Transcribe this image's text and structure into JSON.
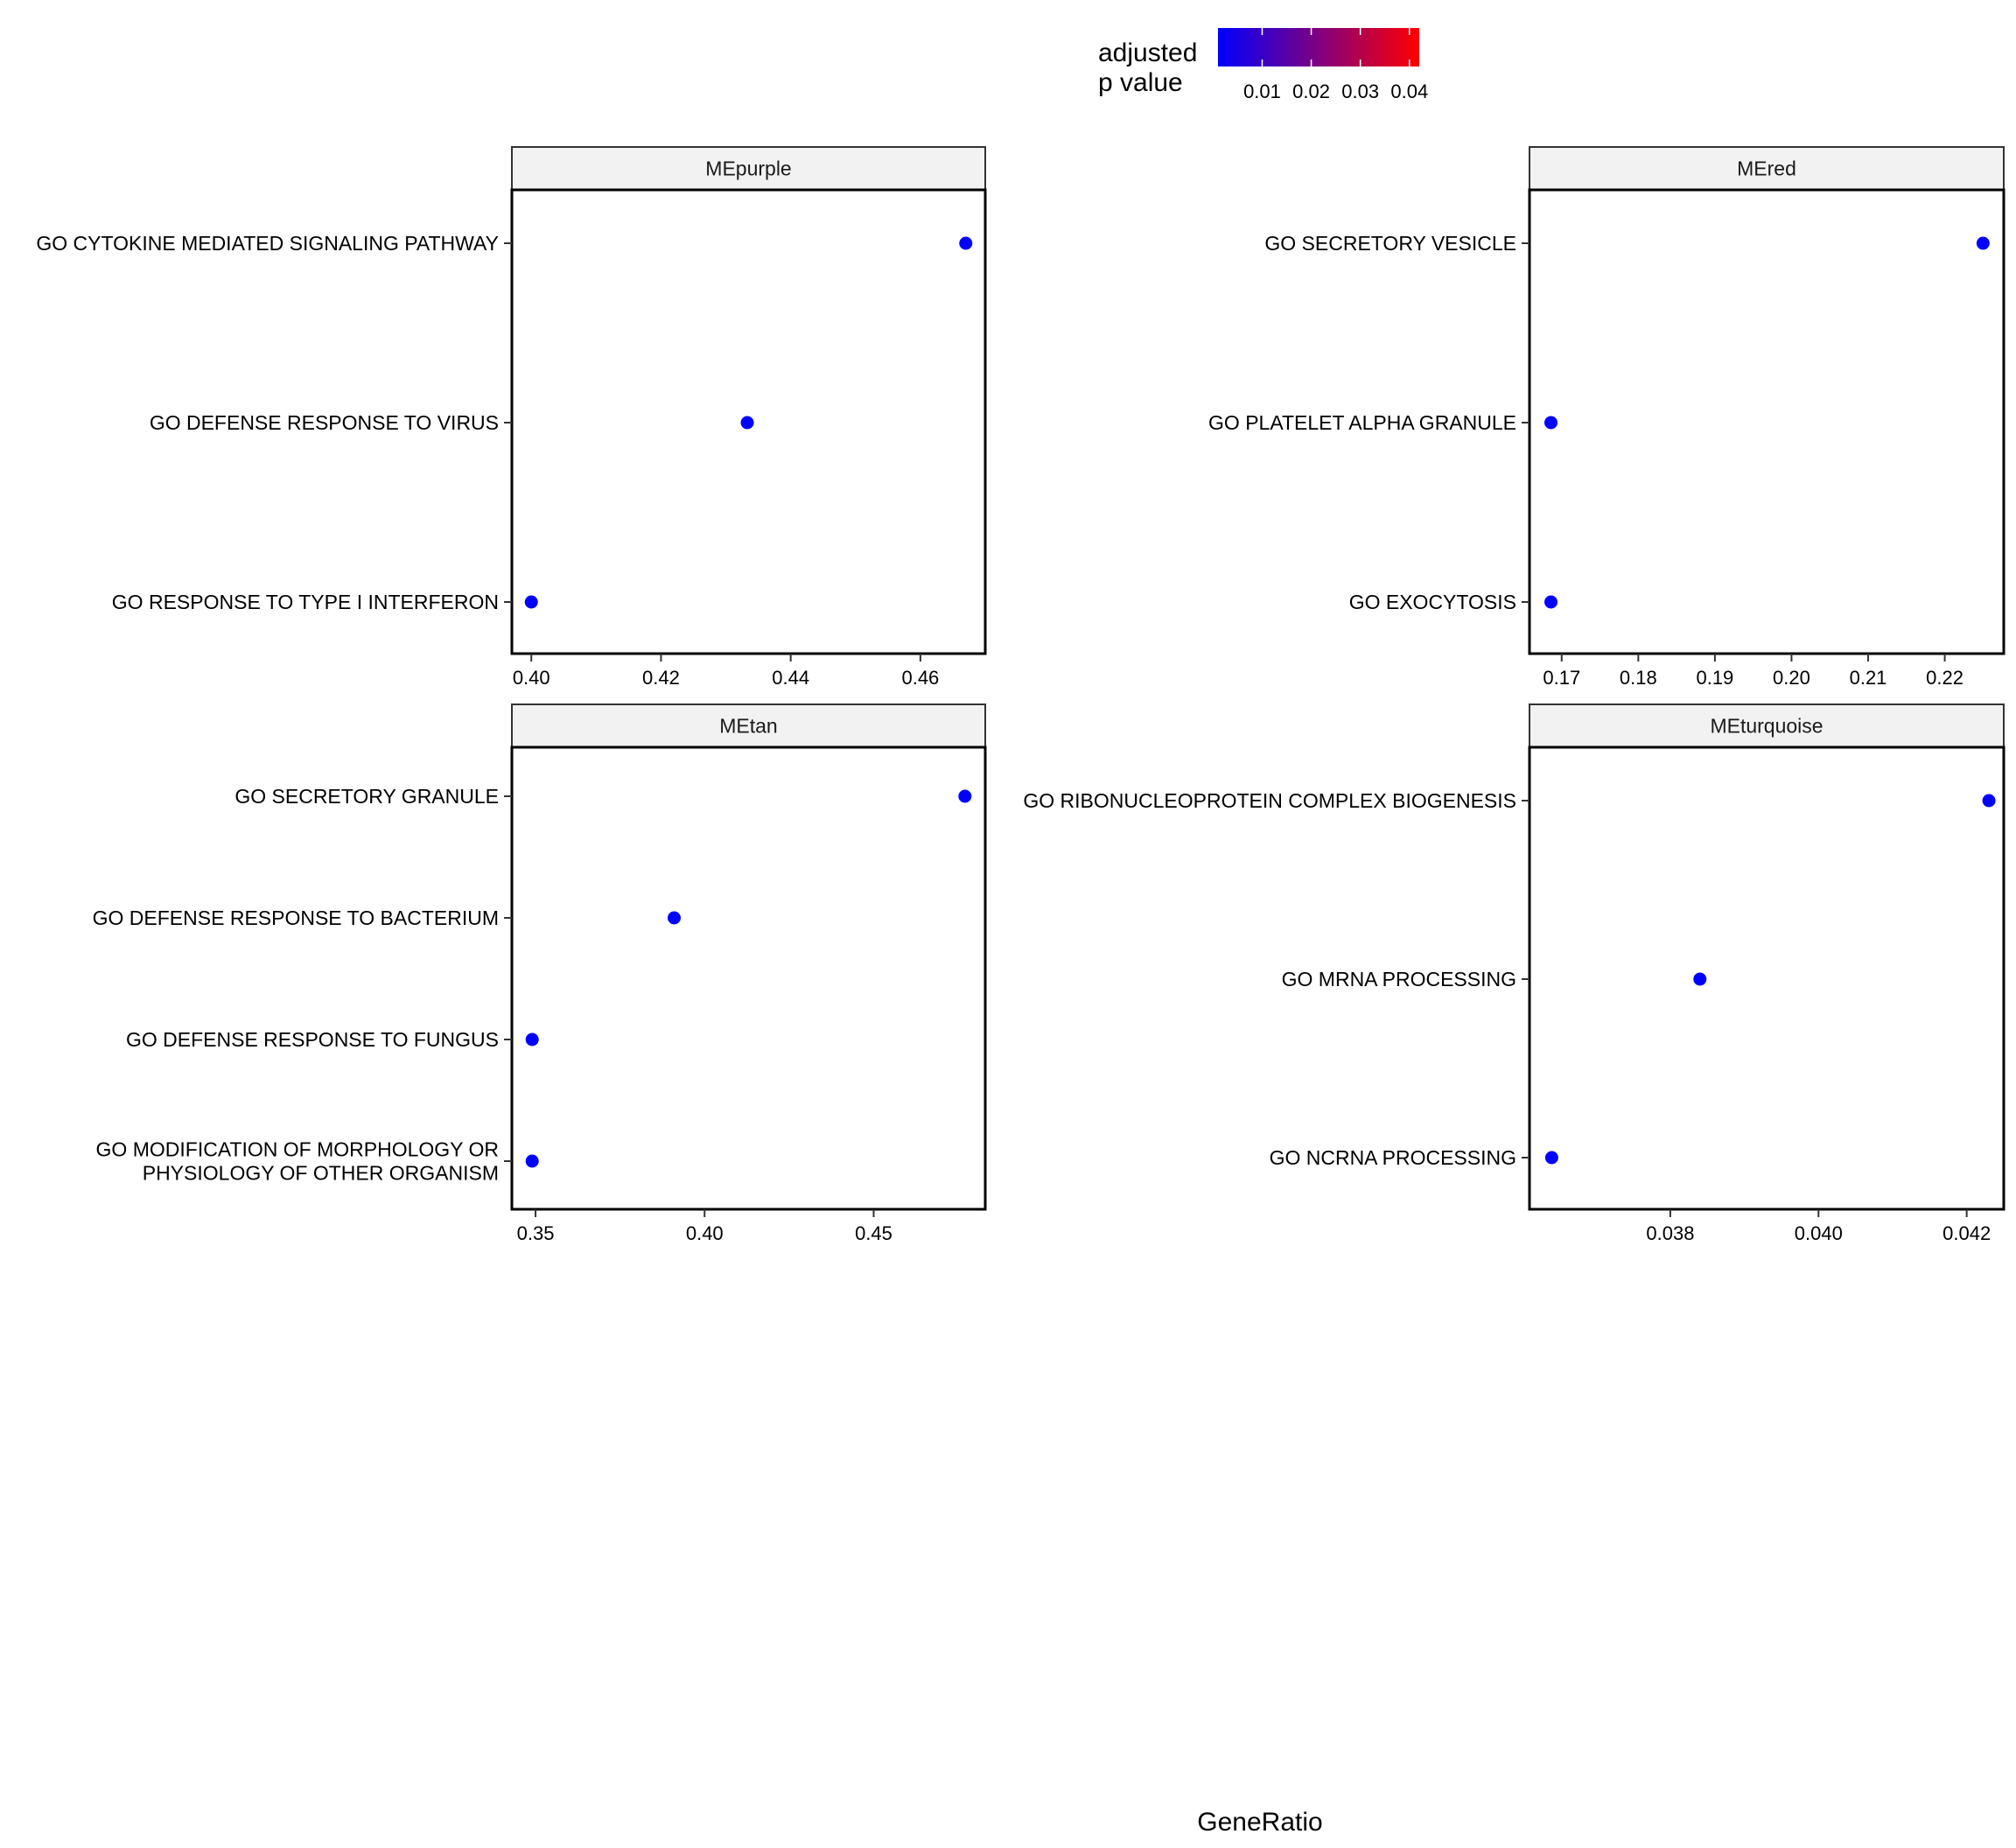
{
  "chart_data": {
    "type": "scatter",
    "xlabel": "GeneRatio",
    "legend": {
      "title_lines": [
        "adjusted",
        "p value"
      ],
      "placement": "top-right",
      "gradient_low_color": "#0000ff",
      "gradient_high_color": "#ff0000",
      "range": [
        0.001,
        0.042
      ],
      "tick_labels": [
        "0.01",
        "0.02",
        "0.03",
        "0.04"
      ],
      "tick_values": [
        0.01,
        0.02,
        0.03,
        0.04
      ]
    },
    "point_color": "#0000ff",
    "panels": [
      {
        "title": "MEpurple",
        "xlim": [
          0.397,
          0.47
        ],
        "xticks": [
          0.4,
          0.42,
          0.44,
          0.46
        ],
        "xtick_labels": [
          "0.40",
          "0.42",
          "0.44",
          "0.46"
        ],
        "categories": [
          {
            "label_lines": [
              "GO CYTOKINE MEDIATED SIGNALING PATHWAY"
            ],
            "x": 0.467
          },
          {
            "label_lines": [
              "GO DEFENSE RESPONSE TO VIRUS"
            ],
            "x": 0.4333
          },
          {
            "label_lines": [
              "GO RESPONSE TO TYPE I INTERFERON"
            ],
            "x": 0.4
          }
        ]
      },
      {
        "title": "MEred",
        "xlim": [
          0.1658,
          0.2277
        ],
        "xticks": [
          0.17,
          0.18,
          0.19,
          0.2,
          0.21,
          0.22
        ],
        "xtick_labels": [
          "0.17",
          "0.18",
          "0.19",
          "0.20",
          "0.21",
          "0.22"
        ],
        "categories": [
          {
            "label_lines": [
              "GO SECRETORY VESICLE"
            ],
            "x": 0.225
          },
          {
            "label_lines": [
              "GO PLATELET ALPHA GRANULE"
            ],
            "x": 0.1686
          },
          {
            "label_lines": [
              "GO EXOCYTOSIS"
            ],
            "x": 0.1686
          }
        ]
      },
      {
        "title": "MEtan",
        "xlim": [
          0.343,
          0.483
        ],
        "xticks": [
          0.35,
          0.4,
          0.45
        ],
        "xtick_labels": [
          "0.35",
          "0.40",
          "0.45"
        ],
        "categories": [
          {
            "label_lines": [
              "GO SECRETORY GRANULE"
            ],
            "x": 0.477
          },
          {
            "label_lines": [
              "GO DEFENSE RESPONSE TO BACTERIUM"
            ],
            "x": 0.391
          },
          {
            "label_lines": [
              "GO DEFENSE RESPONSE TO FUNGUS"
            ],
            "x": 0.349
          },
          {
            "label_lines": [
              "GO MODIFICATION OF MORPHOLOGY OR",
              "PHYSIOLOGY OF OTHER ORGANISM"
            ],
            "x": 0.349
          }
        ]
      },
      {
        "title": "MEturquoise",
        "xlim": [
          0.0361,
          0.0425
        ],
        "xticks": [
          0.038,
          0.04,
          0.042
        ],
        "xtick_labels": [
          "0.038",
          "0.040",
          "0.042"
        ],
        "categories": [
          {
            "label_lines": [
              "GO RIBONUCLEOPROTEIN COMPLEX BIOGENESIS"
            ],
            "x": 0.0423
          },
          {
            "label_lines": [
              "GO MRNA PROCESSING"
            ],
            "x": 0.0384
          },
          {
            "label_lines": [
              "GO NCRNA PROCESSING"
            ],
            "x": 0.0364
          }
        ]
      }
    ]
  }
}
